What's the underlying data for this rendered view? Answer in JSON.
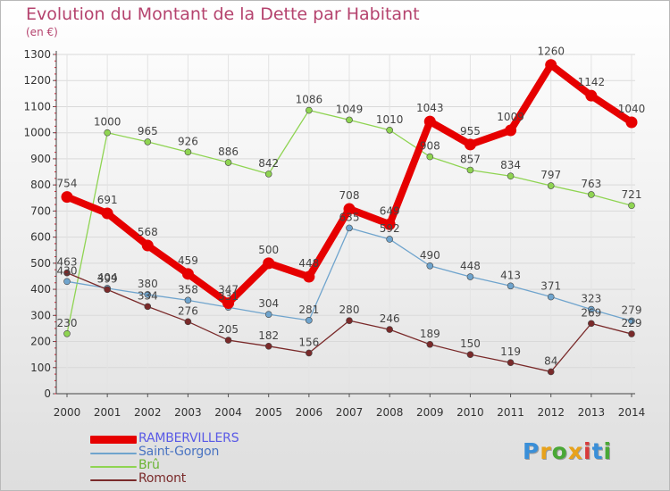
{
  "title": "Evolution du Montant de la Dette par Habitant",
  "subtitle": "(en €)",
  "logo_text": "Proxiti",
  "logo_colors": [
    "#3a8fd8",
    "#e8a21b",
    "#4aa836",
    "#e8a21b",
    "#d83a3a",
    "#3a8fd8",
    "#4aa836"
  ],
  "chart_data": {
    "type": "line",
    "title": "Evolution du Montant de la Dette par Habitant",
    "subtitle": "(en €)",
    "xlabel": "",
    "ylabel": "",
    "ylim": [
      0,
      1300
    ],
    "yticks": [
      0,
      100,
      200,
      300,
      400,
      500,
      600,
      700,
      800,
      900,
      1000,
      1100,
      1200,
      1300
    ],
    "grid": true,
    "legend_position": "bottom-left",
    "categories": [
      "2000",
      "2001",
      "2002",
      "2003",
      "2004",
      "2005",
      "2006",
      "2007",
      "2008",
      "2009",
      "2010",
      "2011",
      "2012",
      "2013",
      "2014"
    ],
    "series": [
      {
        "name": "RAMBERVILLERS",
        "color": "#e60000",
        "legend_color": "#5a5ae6",
        "emphasis": true,
        "values": [
          754,
          691,
          568,
          459,
          347,
          500,
          448,
          708,
          649,
          1043,
          955,
          1009,
          1260,
          1142,
          1040
        ]
      },
      {
        "name": "Saint-Gorgon",
        "color": "#6fa4cd",
        "legend_color": "#4a74c2",
        "emphasis": false,
        "values": [
          430,
          404,
          380,
          358,
          331,
          304,
          281,
          635,
          592,
          490,
          448,
          413,
          371,
          323,
          279
        ]
      },
      {
        "name": "Brû",
        "color": "#8fd452",
        "legend_color": "#6ab432",
        "emphasis": false,
        "values": [
          230,
          1000,
          965,
          926,
          886,
          842,
          1086,
          1049,
          1010,
          908,
          857,
          834,
          797,
          763,
          721
        ]
      },
      {
        "name": "Romont",
        "color": "#7a2a2a",
        "legend_color": "#7a2a2a",
        "emphasis": false,
        "values": [
          463,
          399,
          334,
          276,
          205,
          182,
          156,
          280,
          246,
          189,
          150,
          119,
          84,
          269,
          229
        ]
      }
    ]
  }
}
